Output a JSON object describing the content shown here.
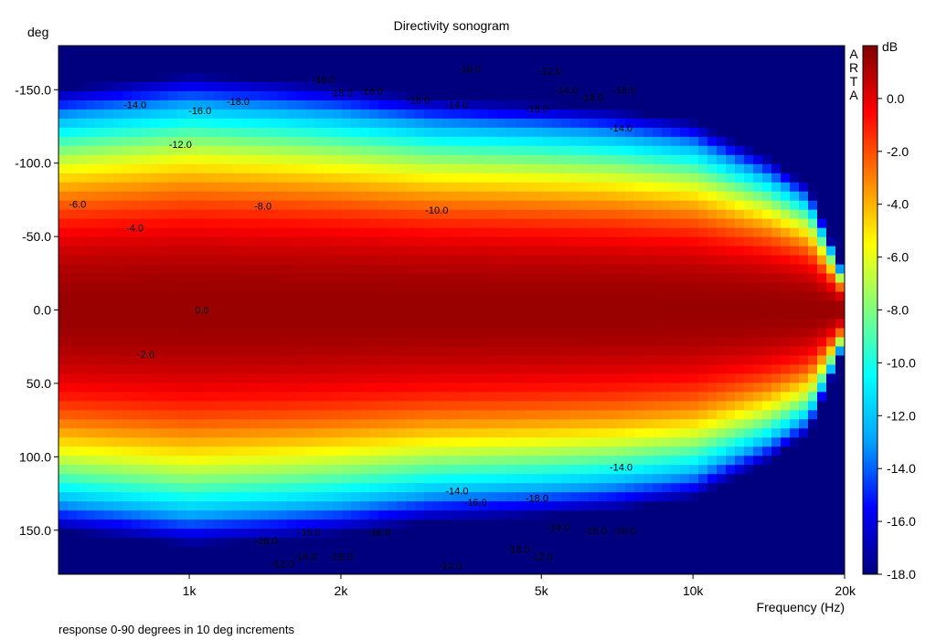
{
  "chart_data": {
    "type": "heatmap",
    "title": "Directivity sonogram",
    "ylabel": "deg",
    "xlabel": "Frequency (Hz)",
    "footnote": "response 0-90 degrees in 10 deg increments",
    "watermark": "ARTA",
    "colorbar_label": "dB",
    "x_scale": "log",
    "xlim": [
      550,
      20000
    ],
    "ylim": [
      -180,
      180
    ],
    "x_ticks": [
      {
        "value": 1000,
        "label": "1k"
      },
      {
        "value": 2000,
        "label": "2k"
      },
      {
        "value": 5000,
        "label": "5k"
      },
      {
        "value": 10000,
        "label": "10k"
      },
      {
        "value": 20000,
        "label": "20k"
      }
    ],
    "y_ticks": [
      {
        "value": -150,
        "label": "-150.0"
      },
      {
        "value": -100,
        "label": "-100.0"
      },
      {
        "value": -50,
        "label": "-50.0"
      },
      {
        "value": 0,
        "label": "0.0"
      },
      {
        "value": 50,
        "label": "50.0"
      },
      {
        "value": 100,
        "label": "100.0"
      },
      {
        "value": 150,
        "label": "150.0"
      }
    ],
    "colorbar_range": [
      -18,
      2
    ],
    "colorbar_ticks": [
      {
        "value": 0,
        "label": "0.0"
      },
      {
        "value": -2,
        "label": "-2.0"
      },
      {
        "value": -4,
        "label": "-4.0"
      },
      {
        "value": -6,
        "label": "-6.0"
      },
      {
        "value": -8,
        "label": "-8.0"
      },
      {
        "value": -10,
        "label": "-10.0"
      },
      {
        "value": -12,
        "label": "-12.0"
      },
      {
        "value": -14,
        "label": "-14.0"
      },
      {
        "value": -16,
        "label": "-16.0"
      },
      {
        "value": -18,
        "label": "-18.0"
      }
    ],
    "colormap": [
      "#00007f",
      "#0000ff",
      "#00a0ff",
      "#00ffff",
      "#7fff7f",
      "#ffff00",
      "#ff8000",
      "#ff0000",
      "#7f0000"
    ],
    "width_profile": [
      {
        "freq": 550,
        "half_width_deg": 75
      },
      {
        "freq": 1000,
        "half_width_deg": 80
      },
      {
        "freq": 1500,
        "half_width_deg": 78
      },
      {
        "freq": 2000,
        "half_width_deg": 76
      },
      {
        "freq": 3000,
        "half_width_deg": 72
      },
      {
        "freq": 5000,
        "half_width_deg": 70
      },
      {
        "freq": 7000,
        "half_width_deg": 68
      },
      {
        "freq": 10000,
        "half_width_deg": 64
      },
      {
        "freq": 14000,
        "half_width_deg": 52
      },
      {
        "freq": 17000,
        "half_width_deg": 42
      },
      {
        "freq": 20000,
        "half_width_deg": 12
      }
    ],
    "contour_labels": [
      {
        "freq": 780,
        "deg": -140,
        "text": "-14.0"
      },
      {
        "freq": 1050,
        "deg": -136,
        "text": "-16.0"
      },
      {
        "freq": 1250,
        "deg": -142,
        "text": "-18.0"
      },
      {
        "freq": 960,
        "deg": -113,
        "text": "-12.0"
      },
      {
        "freq": 600,
        "deg": -72,
        "text": "-6.0"
      },
      {
        "freq": 780,
        "deg": -56,
        "text": "-4.0"
      },
      {
        "freq": 1400,
        "deg": -71,
        "text": "-8.0"
      },
      {
        "freq": 3100,
        "deg": -68,
        "text": "-10.0"
      },
      {
        "freq": 1850,
        "deg": -157,
        "text": "-16.0"
      },
      {
        "freq": 2000,
        "deg": -148,
        "text": "-18.0"
      },
      {
        "freq": 2300,
        "deg": -149,
        "text": "-16.0"
      },
      {
        "freq": 2850,
        "deg": -143,
        "text": "-16.0"
      },
      {
        "freq": 3600,
        "deg": -164,
        "text": "-16.0"
      },
      {
        "freq": 3400,
        "deg": -140,
        "text": "-14.0"
      },
      {
        "freq": 5200,
        "deg": -163,
        "text": "-12.0"
      },
      {
        "freq": 5600,
        "deg": -150,
        "text": "-14.0"
      },
      {
        "freq": 6300,
        "deg": -145,
        "text": "-18.0"
      },
      {
        "freq": 7300,
        "deg": -150,
        "text": "-18.0"
      },
      {
        "freq": 4900,
        "deg": -137,
        "text": "-18.0"
      },
      {
        "freq": 7200,
        "deg": -124,
        "text": "-14.0"
      },
      {
        "freq": 1060,
        "deg": 0,
        "text": "0.0"
      },
      {
        "freq": 820,
        "deg": 30,
        "text": "-2.0"
      },
      {
        "freq": 7200,
        "deg": 107,
        "text": "-14.0"
      },
      {
        "freq": 3400,
        "deg": 123,
        "text": "-14.0"
      },
      {
        "freq": 3700,
        "deg": 131,
        "text": "-16.0"
      },
      {
        "freq": 4900,
        "deg": 128,
        "text": "-18.0"
      },
      {
        "freq": 1420,
        "deg": 157,
        "text": "-18.0"
      },
      {
        "freq": 1730,
        "deg": 151,
        "text": "-16.0"
      },
      {
        "freq": 2380,
        "deg": 151,
        "text": "-16.0"
      },
      {
        "freq": 5400,
        "deg": 148,
        "text": "-14.0"
      },
      {
        "freq": 6400,
        "deg": 150,
        "text": "-18.0"
      },
      {
        "freq": 7300,
        "deg": 150,
        "text": "-18.0"
      },
      {
        "freq": 4500,
        "deg": 163,
        "text": "-18.0"
      },
      {
        "freq": 5000,
        "deg": 168,
        "text": "-12.0"
      },
      {
        "freq": 1530,
        "deg": 173,
        "text": "-12.0"
      },
      {
        "freq": 1700,
        "deg": 168,
        "text": "-14.0"
      },
      {
        "freq": 2000,
        "deg": 168,
        "text": "-18.0"
      },
      {
        "freq": 3300,
        "deg": 174,
        "text": "-12.0"
      }
    ]
  }
}
